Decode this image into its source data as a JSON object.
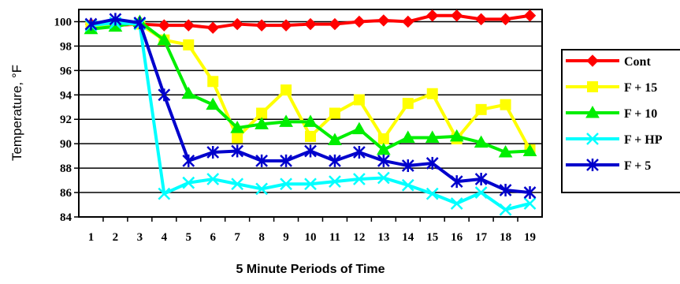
{
  "chart_data": {
    "type": "line",
    "title": "",
    "xlabel": "5 Minute Periods of Time",
    "ylabel": "Temperature, °F",
    "categories": [
      "1",
      "2",
      "3",
      "4",
      "5",
      "6",
      "7",
      "8",
      "9",
      "10",
      "11",
      "12",
      "13",
      "14",
      "15",
      "16",
      "17",
      "18",
      "19"
    ],
    "ylim": [
      84,
      101
    ],
    "yticks": [
      84,
      86,
      88,
      90,
      92,
      94,
      96,
      98,
      100
    ],
    "grid": "horizontal",
    "legend_position": "right",
    "series": [
      {
        "name": "Cont",
        "color": "#ff0000",
        "marker": "diamond",
        "values": [
          99.8,
          99.7,
          99.8,
          99.7,
          99.7,
          99.5,
          99.8,
          99.7,
          99.7,
          99.8,
          99.8,
          100.0,
          100.1,
          100.0,
          100.5,
          100.5,
          100.2,
          100.2,
          100.5
        ]
      },
      {
        "name": "F + 15",
        "color": "#ffff00",
        "marker": "square",
        "values": [
          99.6,
          99.8,
          99.8,
          98.5,
          98.1,
          95.1,
          90.5,
          92.5,
          94.4,
          90.6,
          92.5,
          93.6,
          90.4,
          93.3,
          94.1,
          90.4,
          92.8,
          93.2,
          89.5
        ]
      },
      {
        "name": "F + 10",
        "color": "#00ee00",
        "marker": "triangle",
        "values": [
          99.4,
          99.6,
          100.0,
          98.5,
          94.1,
          93.2,
          91.3,
          91.6,
          91.8,
          91.8,
          90.3,
          91.2,
          89.5,
          90.5,
          90.5,
          90.6,
          90.1,
          89.3,
          89.4
        ]
      },
      {
        "name": "F + HP",
        "color": "#00ffff",
        "marker": "x",
        "values": [
          99.7,
          99.9,
          99.8,
          85.9,
          86.8,
          87.1,
          86.7,
          86.3,
          86.7,
          86.7,
          86.9,
          87.1,
          87.2,
          86.6,
          85.9,
          85.1,
          86.0,
          84.6,
          85.1
        ]
      },
      {
        "name": "F + 5",
        "color": "#0000cc",
        "marker": "asterisk",
        "values": [
          99.8,
          100.2,
          99.9,
          94.0,
          88.6,
          89.3,
          89.4,
          88.6,
          88.6,
          89.4,
          88.6,
          89.3,
          88.6,
          88.2,
          88.4,
          86.9,
          87.1,
          86.2,
          86.0
        ]
      }
    ]
  }
}
